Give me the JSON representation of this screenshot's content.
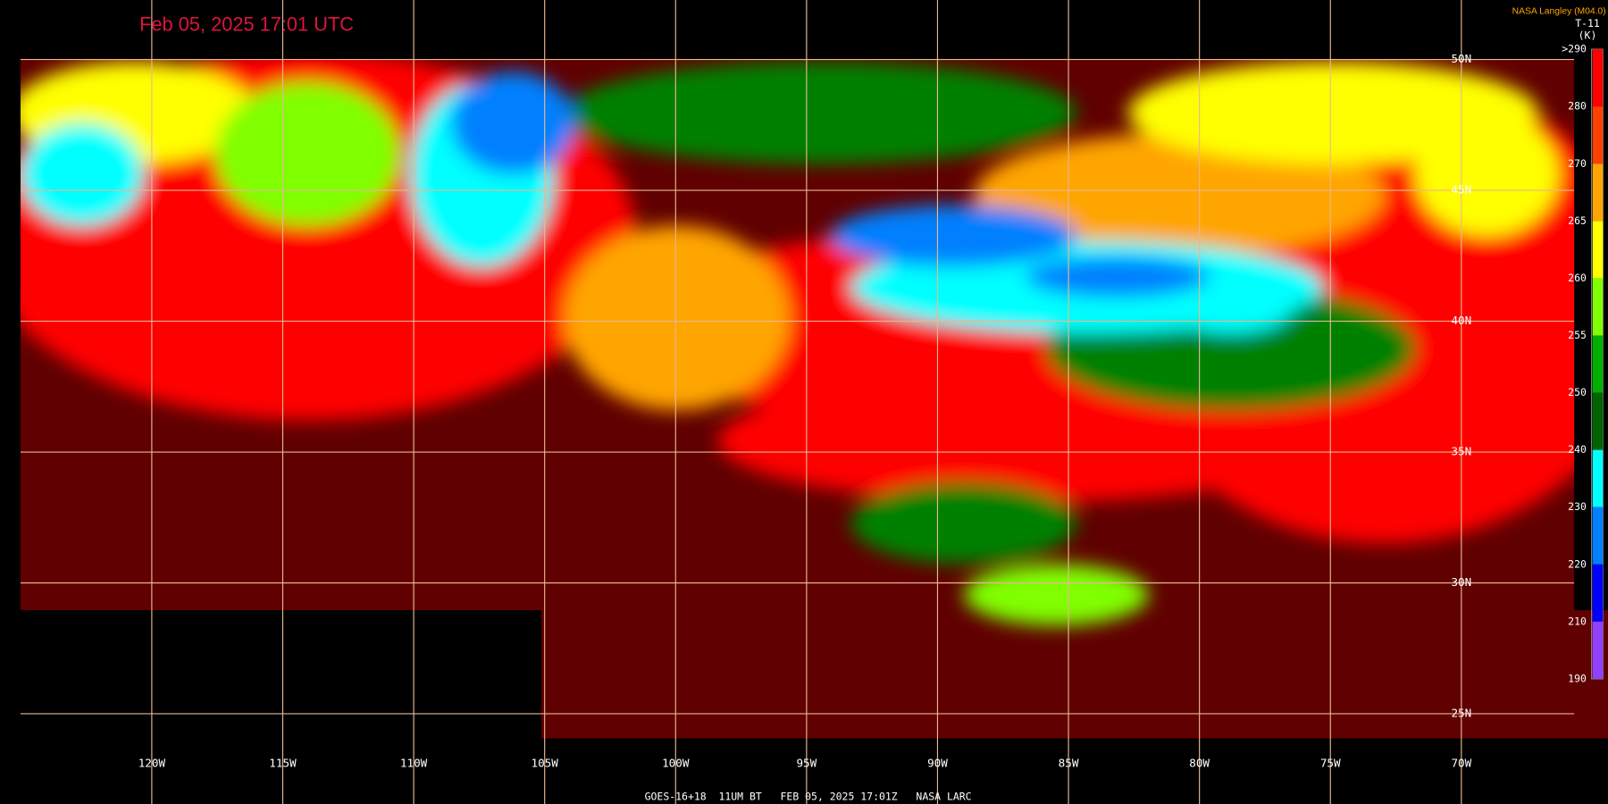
{
  "header": {
    "title": "Feb 05, 2025 17:01 UTC",
    "credit": "NASA Langley (M04.0)"
  },
  "colorbar": {
    "title": "T-11",
    "unit": "(K)",
    "labels": [
      ">290",
      "280",
      "270",
      "265",
      "260",
      "255",
      "250",
      "240",
      "230",
      "220",
      "210",
      "190"
    ]
  },
  "grid": {
    "longitude_labels": [
      "120W",
      "115W",
      "110W",
      "105W",
      "100W",
      "95W",
      "90W",
      "85W",
      "80W",
      "75W",
      "70W"
    ],
    "latitude_labels": [
      "50N",
      "45N",
      "40N",
      "35N",
      "30N",
      "25N"
    ]
  },
  "footer": "GOES-16+18  11UM BT   FEB 05, 2025 17:01Z   NASA LARC"
}
